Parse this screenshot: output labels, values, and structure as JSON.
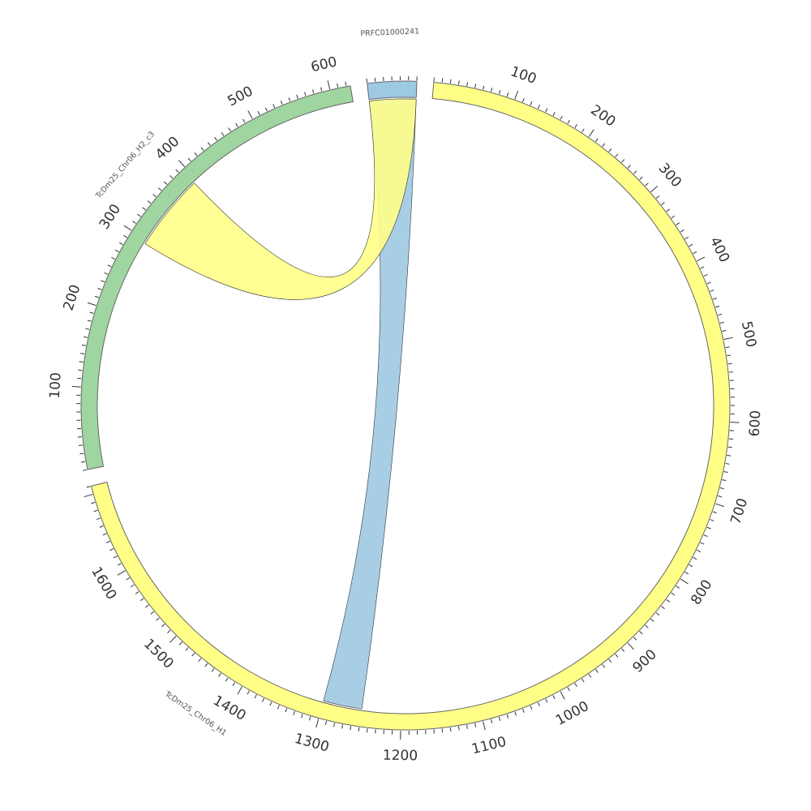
{
  "sequences": [
    {
      "id": "h1",
      "name": "TcDm25_Chr06_H1",
      "length": 1710,
      "color": "#ffff88",
      "major_ticks": [
        100,
        200,
        300,
        400,
        500,
        600,
        700,
        800,
        900,
        1000,
        1100,
        1200,
        1300,
        1400,
        1500,
        1600
      ]
    },
    {
      "id": "h2",
      "name": "TcDm25_Chr06_H2_c3",
      "length": 625,
      "color": "#9fd5a0",
      "major_ticks": [
        100,
        200,
        300,
        400,
        500,
        600
      ]
    },
    {
      "id": "prfc",
      "name": "PRFC01000241",
      "length": 60,
      "color": "#9ec9e3",
      "major_ticks": []
    }
  ],
  "links": [
    {
      "from": "prfc",
      "from_range": [
        0,
        60
      ],
      "to": "h1",
      "to_range": [
        1250,
        1300
      ],
      "color": "#9ec9e3"
    },
    {
      "from": "prfc",
      "from_range": [
        0,
        60
      ],
      "to": "h2",
      "to_range": [
        295,
        395
      ],
      "color": "#ffff88"
    }
  ]
}
